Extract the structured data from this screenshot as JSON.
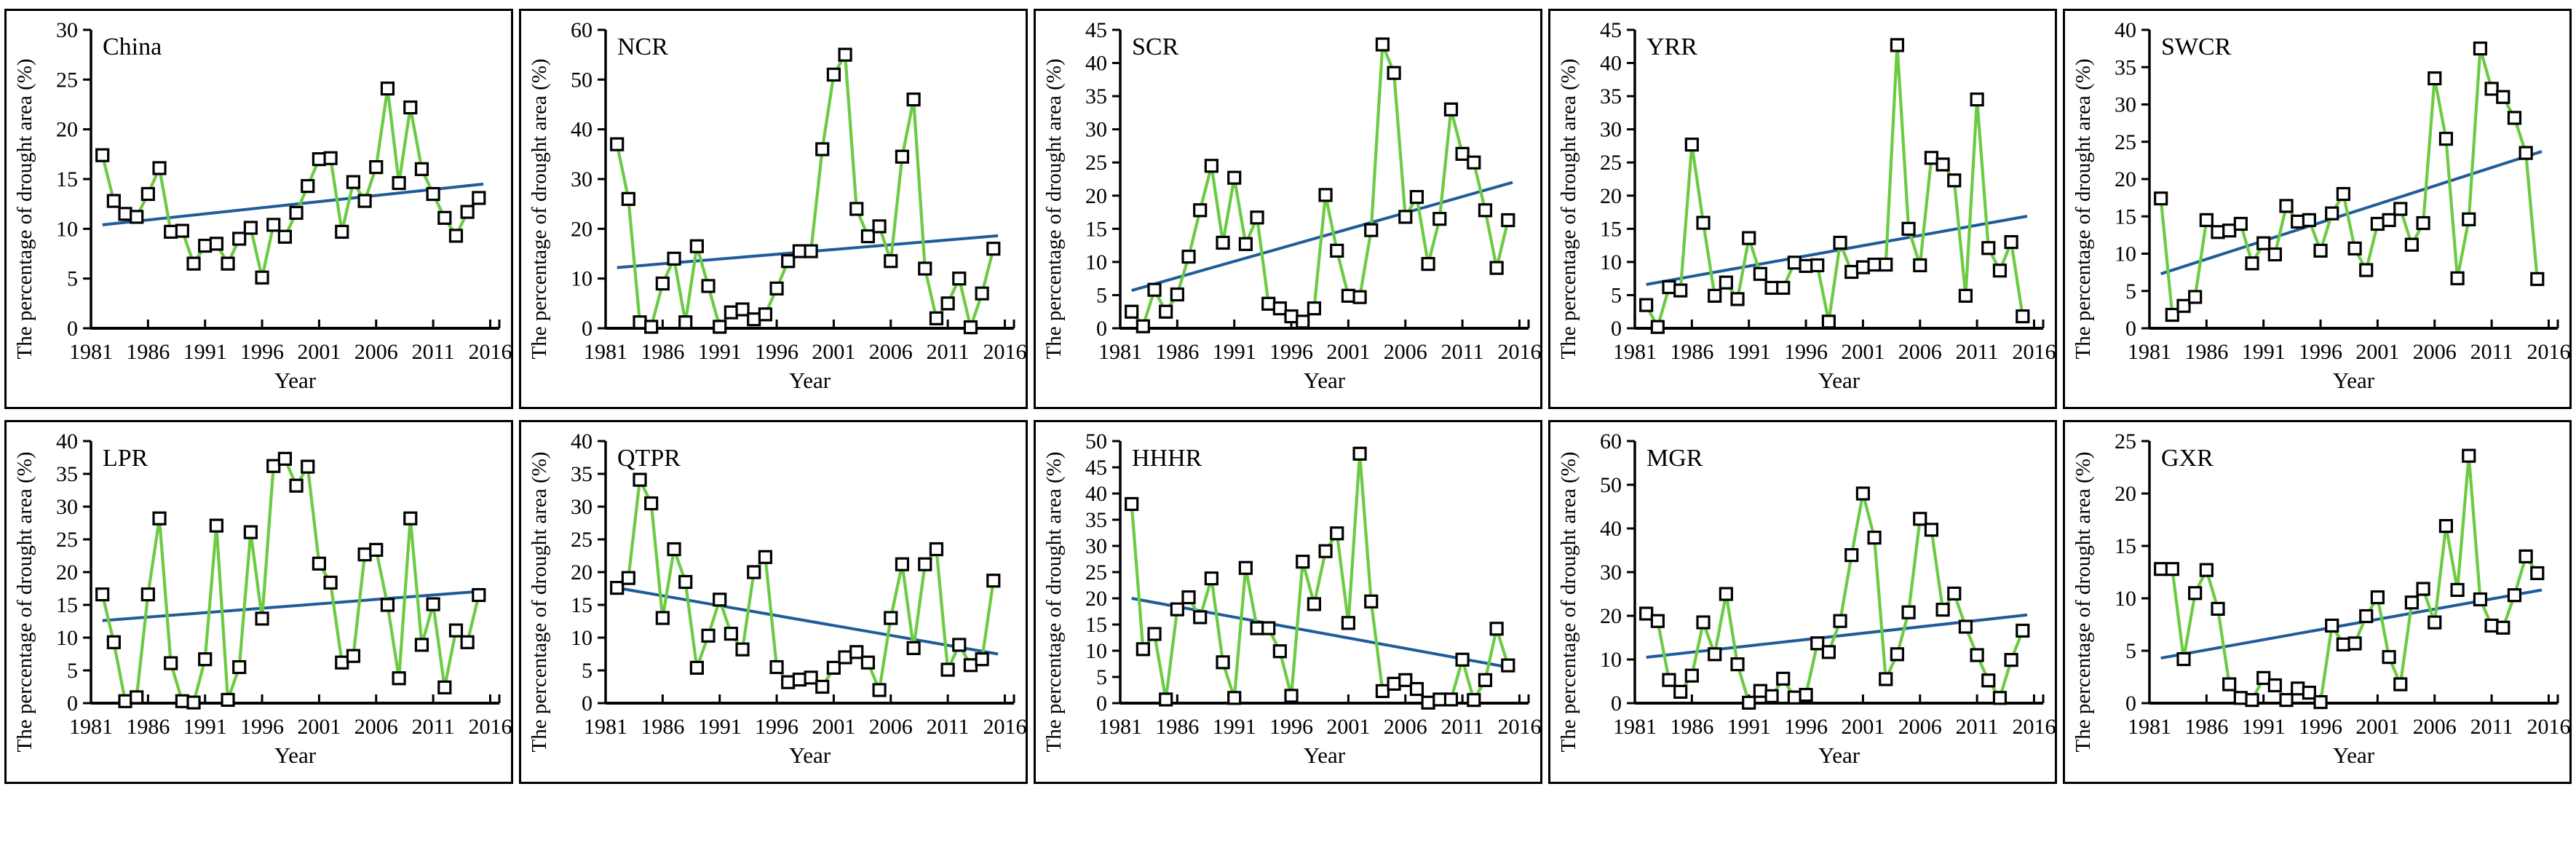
{
  "figure": {
    "xlabel": "Year",
    "ylabel": "The percentage of drought area (%)",
    "x_ticks": [
      1981,
      1986,
      1991,
      1996,
      2001,
      2006,
      2011,
      2016
    ],
    "x_axis_range": [
      1981,
      2016.8
    ],
    "colors": {
      "series_line": "#6BCB43",
      "trend_line": "#1F5C99",
      "marker_fill": "#FFFFFF",
      "marker_stroke": "#000000",
      "axis": "#000000",
      "text": "#000000"
    }
  },
  "chart_data": [
    {
      "type": "line",
      "title": "China",
      "xlabel": "Year",
      "ylabel": "The percentage of drought area (%)",
      "ylim": [
        0,
        30
      ],
      "ytick_step": 5,
      "x": [
        1982,
        1983,
        1984,
        1985,
        1986,
        1987,
        1988,
        1989,
        1990,
        1991,
        1992,
        1993,
        1994,
        1995,
        1996,
        1997,
        1998,
        1999,
        2000,
        2001,
        2002,
        2003,
        2004,
        2005,
        2006,
        2007,
        2008,
        2009,
        2010,
        2011,
        2012,
        2013,
        2014,
        2015
      ],
      "values": [
        17.4,
        12.8,
        11.5,
        11.2,
        13.5,
        16.1,
        9.7,
        9.8,
        6.5,
        8.3,
        8.5,
        6.5,
        9.0,
        10.1,
        5.1,
        10.4,
        9.2,
        11.6,
        14.3,
        17.0,
        17.1,
        9.7,
        14.7,
        12.8,
        16.2,
        24.1,
        14.6,
        22.2,
        16.0,
        13.5,
        11.1,
        9.3,
        11.7,
        13.1
      ],
      "trend": {
        "start_year": 1982,
        "end_year": 2015.4,
        "start_value": 10.4,
        "end_value": 14.5
      }
    },
    {
      "type": "line",
      "title": "NCR",
      "xlabel": "Year",
      "ylabel": "The percentage of drought area (%)",
      "ylim": [
        0,
        60
      ],
      "ytick_step": 10,
      "x": [
        1982,
        1983,
        1984,
        1985,
        1986,
        1987,
        1988,
        1989,
        1990,
        1991,
        1992,
        1993,
        1994,
        1995,
        1996,
        1997,
        1998,
        1999,
        2000,
        2001,
        2002,
        2003,
        2004,
        2005,
        2006,
        2007,
        2008,
        2009,
        2010,
        2011,
        2012,
        2013,
        2014,
        2015
      ],
      "values": [
        37,
        26,
        1.2,
        0.3,
        9,
        14,
        1.2,
        16.5,
        8.5,
        0.3,
        3.2,
        3.8,
        1.8,
        2.8,
        8,
        13.5,
        15.5,
        15.5,
        36,
        51,
        55,
        24,
        18.5,
        20.5,
        13.5,
        34.5,
        46,
        12,
        2,
        5,
        10,
        0.2,
        7,
        16
      ],
      "trend": {
        "start_year": 1982,
        "end_year": 2015.4,
        "start_value": 12.2,
        "end_value": 18.6
      }
    },
    {
      "type": "line",
      "title": "SCR",
      "xlabel": "Year",
      "ylabel": "The percentage of drought area (%)",
      "ylim": [
        0,
        45
      ],
      "ytick_step": 5,
      "x": [
        1982,
        1983,
        1984,
        1985,
        1986,
        1987,
        1988,
        1989,
        1990,
        1991,
        1992,
        1993,
        1994,
        1995,
        1996,
        1997,
        1998,
        1999,
        2000,
        2001,
        2002,
        2003,
        2004,
        2005,
        2006,
        2007,
        2008,
        2009,
        2010,
        2011,
        2012,
        2013,
        2014,
        2015
      ],
      "values": [
        2.5,
        0.3,
        5.8,
        2.5,
        5.1,
        10.8,
        17.8,
        24.5,
        12.9,
        22.7,
        12.7,
        16.7,
        3.7,
        3.0,
        1.8,
        1.0,
        3.0,
        20.1,
        11.7,
        4.9,
        4.7,
        14.8,
        42.8,
        38.5,
        16.8,
        19.8,
        9.7,
        16.5,
        33.0,
        26.3,
        25.0,
        17.8,
        9.1,
        16.3
      ],
      "trend": {
        "start_year": 1982,
        "end_year": 2015.4,
        "start_value": 5.7,
        "end_value": 22.0
      }
    },
    {
      "type": "line",
      "title": "YRR",
      "xlabel": "Year",
      "ylabel": "The percentage of drought area (%)",
      "ylim": [
        0,
        45
      ],
      "ytick_step": 5,
      "x": [
        1982,
        1983,
        1984,
        1985,
        1986,
        1987,
        1988,
        1989,
        1990,
        1991,
        1992,
        1993,
        1994,
        1995,
        1996,
        1997,
        1998,
        1999,
        2000,
        2001,
        2002,
        2003,
        2004,
        2005,
        2006,
        2007,
        2008,
        2009,
        2010,
        2011,
        2012,
        2013,
        2014,
        2015
      ],
      "values": [
        3.5,
        0.2,
        6.2,
        5.7,
        27.7,
        15.9,
        4.9,
        6.9,
        4.4,
        13.6,
        8.2,
        6.1,
        6.1,
        9.9,
        9.4,
        9.5,
        1.0,
        12.9,
        8.5,
        9.2,
        9.6,
        9.6,
        42.7,
        15.0,
        9.5,
        25.7,
        24.7,
        22.3,
        4.9,
        34.5,
        12.1,
        8.7,
        13.0,
        1.8
      ],
      "trend": {
        "start_year": 1982,
        "end_year": 2015.4,
        "start_value": 6.6,
        "end_value": 16.9
      }
    },
    {
      "type": "line",
      "title": "SWCR",
      "xlabel": "Year",
      "ylabel": "The percentage of drought area (%)",
      "ylim": [
        0,
        40
      ],
      "ytick_step": 5,
      "x": [
        1982,
        1983,
        1984,
        1985,
        1986,
        1987,
        1988,
        1989,
        1990,
        1991,
        1992,
        1993,
        1994,
        1995,
        1996,
        1997,
        1998,
        1999,
        2000,
        2001,
        2002,
        2003,
        2004,
        2005,
        2006,
        2007,
        2008,
        2009,
        2010,
        2011,
        2012,
        2013,
        2014,
        2015
      ],
      "values": [
        17.4,
        1.8,
        3.0,
        4.2,
        14.5,
        12.9,
        13.1,
        14.0,
        8.7,
        11.4,
        9.9,
        16.4,
        14.3,
        14.5,
        10.4,
        15.4,
        18.0,
        10.7,
        7.8,
        14.0,
        14.5,
        16.0,
        11.2,
        14.1,
        33.5,
        25.4,
        6.7,
        14.6,
        37.5,
        32.1,
        31.0,
        28.2,
        23.5,
        6.6
      ],
      "trend": {
        "start_year": 1982,
        "end_year": 2015.4,
        "start_value": 7.3,
        "end_value": 23.7
      }
    },
    {
      "type": "line",
      "title": "LPR",
      "xlabel": "Year",
      "ylabel": "The percentage of drought area (%)",
      "ylim": [
        0,
        40
      ],
      "ytick_step": 5,
      "x": [
        1982,
        1983,
        1984,
        1985,
        1986,
        1987,
        1988,
        1989,
        1990,
        1991,
        1992,
        1993,
        1994,
        1995,
        1996,
        1997,
        1998,
        1999,
        2000,
        2001,
        2002,
        2003,
        2004,
        2005,
        2006,
        2007,
        2008,
        2009,
        2010,
        2011,
        2012,
        2013,
        2014,
        2015
      ],
      "values": [
        16.6,
        9.3,
        0.3,
        0.9,
        16.6,
        28.2,
        6.1,
        0.3,
        0.1,
        6.7,
        27.1,
        0.5,
        5.5,
        26.1,
        12.9,
        36.2,
        37.3,
        33.2,
        36.1,
        21.3,
        18.4,
        6.2,
        7.2,
        22.7,
        23.4,
        15.0,
        3.8,
        28.2,
        8.9,
        15.1,
        2.4,
        11.1,
        9.3,
        16.5
      ],
      "trend": {
        "start_year": 1982,
        "end_year": 2015.4,
        "start_value": 12.6,
        "end_value": 17.1
      }
    },
    {
      "type": "line",
      "title": "QTPR",
      "xlabel": "Year",
      "ylabel": "The percentage of drought area (%)",
      "ylim": [
        0,
        40
      ],
      "ytick_step": 5,
      "x": [
        1982,
        1983,
        1984,
        1985,
        1986,
        1987,
        1988,
        1989,
        1990,
        1991,
        1992,
        1993,
        1994,
        1995,
        1996,
        1997,
        1998,
        1999,
        2000,
        2001,
        2002,
        2003,
        2004,
        2005,
        2006,
        2007,
        2008,
        2009,
        2010,
        2011,
        2012,
        2013,
        2014,
        2015
      ],
      "values": [
        17.6,
        19.1,
        34.1,
        30.5,
        13.0,
        23.5,
        18.5,
        5.4,
        10.3,
        15.8,
        10.6,
        8.2,
        20.0,
        22.3,
        5.5,
        3.2,
        3.6,
        3.9,
        2.5,
        5.4,
        7.0,
        7.8,
        6.2,
        2.0,
        13.0,
        21.2,
        8.4,
        21.2,
        23.5,
        5.1,
        8.9,
        5.8,
        6.7,
        18.7
      ],
      "trend": {
        "start_year": 1982,
        "end_year": 2015.4,
        "start_value": 17.6,
        "end_value": 7.5
      }
    },
    {
      "type": "line",
      "title": "HHHR",
      "xlabel": "Year",
      "ylabel": "The percentage of drought area (%)",
      "ylim": [
        0,
        50
      ],
      "ytick_step": 5,
      "x": [
        1982,
        1983,
        1984,
        1985,
        1986,
        1987,
        1988,
        1989,
        1990,
        1991,
        1992,
        1993,
        1994,
        1995,
        1996,
        1997,
        1998,
        1999,
        2000,
        2001,
        2002,
        2003,
        2004,
        2005,
        2006,
        2007,
        2008,
        2009,
        2010,
        2011,
        2012,
        2013,
        2014,
        2015
      ],
      "values": [
        38.0,
        10.3,
        13.2,
        0.7,
        17.9,
        20.2,
        16.4,
        23.8,
        7.8,
        1.0,
        25.8,
        14.3,
        14.3,
        9.9,
        1.4,
        27.0,
        18.9,
        29.0,
        32.4,
        15.3,
        47.6,
        19.4,
        2.3,
        3.7,
        4.4,
        2.7,
        0.1,
        0.7,
        0.7,
        8.3,
        0.6,
        4.4,
        14.2,
        7.2
      ],
      "trend": {
        "start_year": 1982,
        "end_year": 2015.4,
        "start_value": 20.0,
        "end_value": 6.7
      }
    },
    {
      "type": "line",
      "title": "MGR",
      "xlabel": "Year",
      "ylabel": "The percentage of drought area (%)",
      "ylim": [
        0,
        60
      ],
      "ytick_step": 10,
      "x": [
        1982,
        1983,
        1984,
        1985,
        1986,
        1987,
        1988,
        1989,
        1990,
        1991,
        1992,
        1993,
        1994,
        1995,
        1996,
        1997,
        1998,
        1999,
        2000,
        2001,
        2002,
        2003,
        2004,
        2005,
        2006,
        2007,
        2008,
        2009,
        2010,
        2011,
        2012,
        2013,
        2014,
        2015
      ],
      "values": [
        20.5,
        18.8,
        5.3,
        2.6,
        6.3,
        18.5,
        11.2,
        25.0,
        8.9,
        0.1,
        2.8,
        1.6,
        5.6,
        1.3,
        1.9,
        13.7,
        11.7,
        18.8,
        33.9,
        48.0,
        37.9,
        5.5,
        11.2,
        20.8,
        42.2,
        39.7,
        21.4,
        25.1,
        17.5,
        11.0,
        5.2,
        1.2,
        9.9,
        16.6
      ],
      "trend": {
        "start_year": 1982,
        "end_year": 2015.4,
        "start_value": 10.5,
        "end_value": 20.2
      }
    },
    {
      "type": "line",
      "title": "GXR",
      "xlabel": "Year",
      "ylabel": "The percentage of drought area (%)",
      "ylim": [
        0,
        25
      ],
      "ytick_step": 5,
      "x": [
        1982,
        1983,
        1984,
        1985,
        1986,
        1987,
        1988,
        1989,
        1990,
        1991,
        1992,
        1993,
        1994,
        1995,
        1996,
        1997,
        1998,
        1999,
        2000,
        2001,
        2002,
        2003,
        2004,
        2005,
        2006,
        2007,
        2008,
        2009,
        2010,
        2011,
        2012,
        2013,
        2014,
        2015
      ],
      "values": [
        12.8,
        12.8,
        4.2,
        10.5,
        12.7,
        9.0,
        1.8,
        0.5,
        0.3,
        2.4,
        1.7,
        0.3,
        1.4,
        1.0,
        0.1,
        7.4,
        5.6,
        5.7,
        8.3,
        10.1,
        4.4,
        1.8,
        9.6,
        10.9,
        7.7,
        16.9,
        10.8,
        23.6,
        9.9,
        7.4,
        7.2,
        10.3,
        14.0,
        12.4
      ],
      "trend": {
        "start_year": 1982,
        "end_year": 2015.4,
        "start_value": 4.3,
        "end_value": 10.8
      }
    }
  ]
}
